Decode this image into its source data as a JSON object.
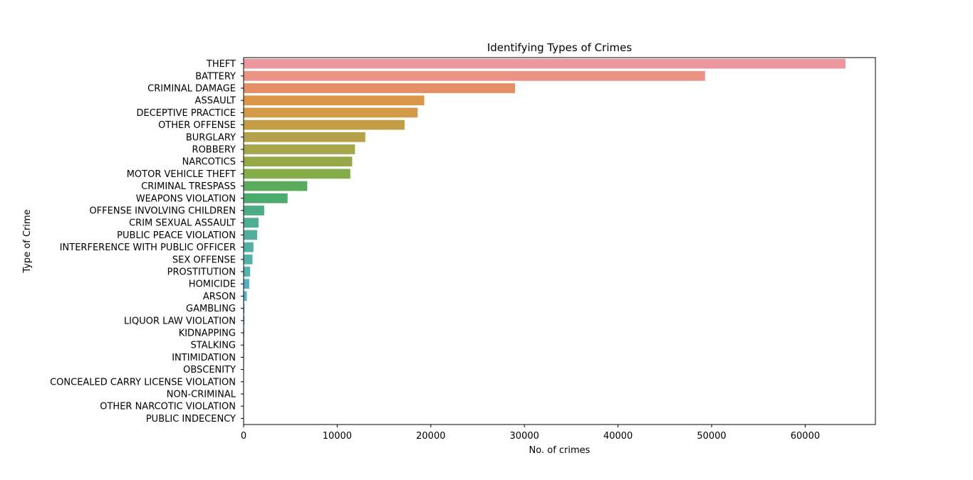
{
  "chart_data": {
    "type": "bar",
    "orientation": "horizontal",
    "title": "Identifying Types of Crimes",
    "xlabel": "No. of crimes",
    "ylabel": "Type of Crime",
    "xlim": [
      0,
      67500
    ],
    "xticks": [
      0,
      10000,
      20000,
      30000,
      40000,
      50000,
      60000
    ],
    "grid": false,
    "legend": "none",
    "categories": [
      "THEFT",
      "BATTERY",
      "CRIMINAL DAMAGE",
      "ASSAULT",
      "DECEPTIVE PRACTICE",
      "OTHER OFFENSE",
      "BURGLARY",
      "ROBBERY",
      "NARCOTICS",
      "MOTOR VEHICLE THEFT",
      "CRIMINAL TRESPASS",
      "WEAPONS VIOLATION",
      "OFFENSE INVOLVING CHILDREN",
      "CRIM SEXUAL ASSAULT",
      "PUBLIC PEACE VIOLATION",
      "INTERFERENCE WITH PUBLIC OFFICER",
      "SEX OFFENSE",
      "PROSTITUTION",
      "HOMICIDE",
      "ARSON",
      "GAMBLING",
      "LIQUOR LAW VIOLATION",
      "KIDNAPPING",
      "STALKING",
      "INTIMIDATION",
      "OBSCENITY",
      "CONCEALED CARRY LICENSE VIOLATION",
      "NON-CRIMINAL",
      "OTHER NARCOTIC VIOLATION",
      "PUBLIC INDECENCY"
    ],
    "values": [
      64300,
      49300,
      29000,
      19300,
      18600,
      17200,
      13000,
      11900,
      11600,
      11400,
      6800,
      4700,
      2200,
      1600,
      1450,
      1050,
      950,
      700,
      600,
      350,
      100,
      100,
      80,
      70,
      60,
      40,
      30,
      20,
      10,
      5
    ],
    "colors": [
      "#ed969d",
      "#eb9384",
      "#e58e63",
      "#dc9648",
      "#d49a47",
      "#c69d47",
      "#b5a149",
      "#a6a54a",
      "#96a94a",
      "#84ad49",
      "#5aab5b",
      "#4cac6f",
      "#4dae86",
      "#4faf93",
      "#50b09b",
      "#51b0a4",
      "#52b1ab",
      "#53b2b3",
      "#55b2bc",
      "#58b4c8",
      "#5eb4d4",
      "#70aee0",
      "#8aa9e8",
      "#a5a2ed",
      "#bc9bf0",
      "#cd95ef",
      "#dd8fea",
      "#e98ee0",
      "#ef90d0",
      "#f094be"
    ]
  }
}
